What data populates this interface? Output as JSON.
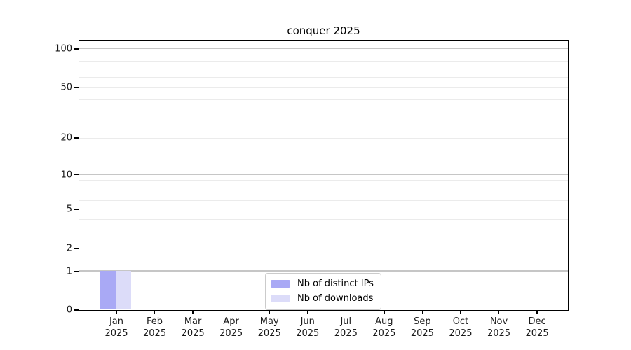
{
  "title": "conquer 2025",
  "chart_data": {
    "type": "bar",
    "title": "conquer 2025",
    "categories": [
      "Jan 2025",
      "Feb 2025",
      "Mar 2025",
      "Apr 2025",
      "May 2025",
      "Jun 2025",
      "Jul 2025",
      "Aug 2025",
      "Sep 2025",
      "Oct 2025",
      "Nov 2025",
      "Dec 2025"
    ],
    "series": [
      {
        "name": "Nb of distinct IPs",
        "color": "#a9a9f5",
        "values": [
          1,
          0,
          0,
          0,
          0,
          0,
          0,
          0,
          0,
          0,
          0,
          0
        ]
      },
      {
        "name": "Nb of downloads",
        "color": "#dcdcf9",
        "values": [
          1,
          0,
          0,
          0,
          0,
          0,
          0,
          0,
          0,
          0,
          0,
          0
        ]
      }
    ],
    "xlabel": "",
    "ylabel": "",
    "y_axis": {
      "scale": "log10(value+1)",
      "tick_labels": [
        100,
        50,
        20,
        10,
        5,
        2,
        1,
        0
      ],
      "decade_gridlines": [
        1,
        10,
        100
      ],
      "minor_gridlines": [
        2,
        3,
        4,
        5,
        6,
        7,
        8,
        9,
        20,
        30,
        40,
        50,
        60,
        70,
        80,
        90
      ],
      "ylim": [
        0,
        116
      ]
    },
    "grid": true,
    "legend_position": "lower center inside plot"
  },
  "legend": {
    "items": [
      {
        "label": "Nb of distinct IPs",
        "color": "#a9a9f5"
      },
      {
        "label": "Nb of downloads",
        "color": "#dcdcf9"
      }
    ]
  },
  "colors": {
    "background": "#ffffff",
    "spine": "#000000",
    "major_grid": "#c6c6c6",
    "minor_grid": "#ebebeb",
    "text": "#1a1a1a"
  }
}
